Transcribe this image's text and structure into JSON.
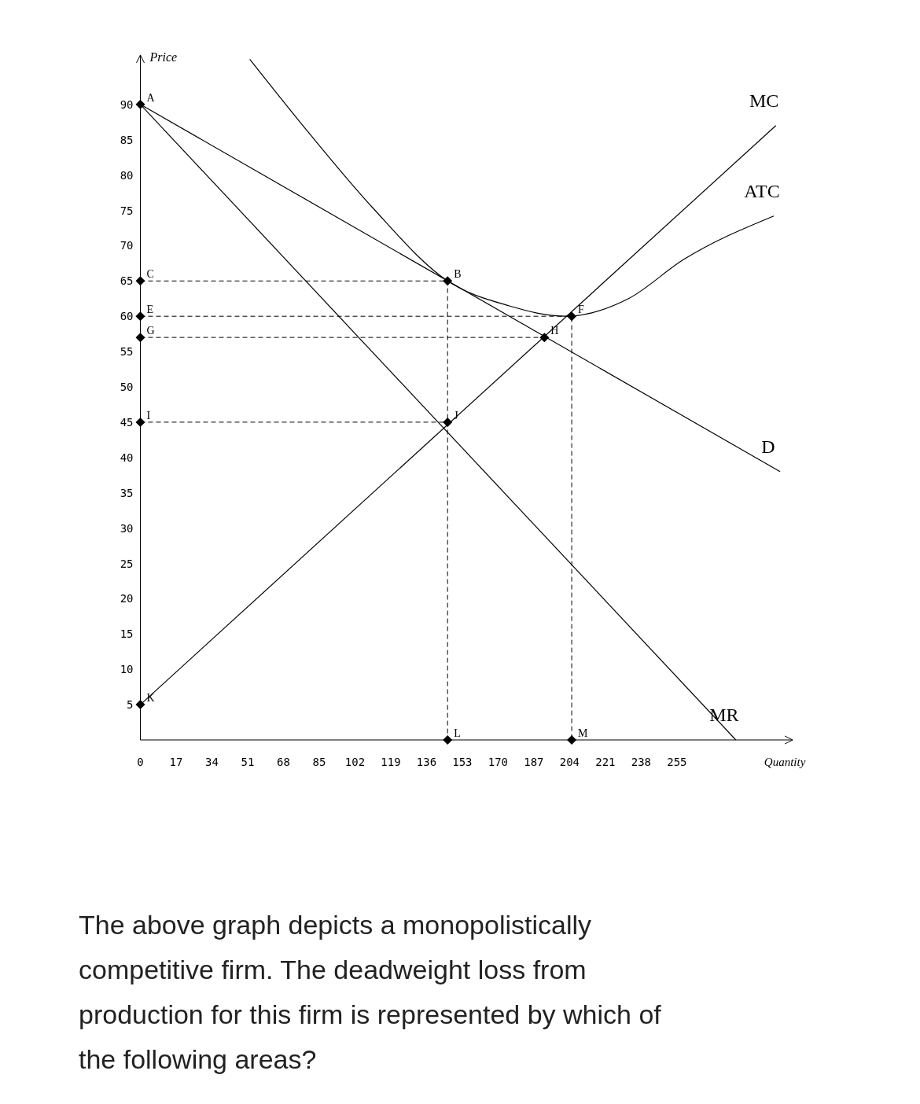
{
  "chart_data": {
    "type": "line",
    "xlabel": "Quantity",
    "ylabel": "Price",
    "xlim": [
      0,
      310
    ],
    "ylim": [
      0,
      97
    ],
    "xticks": [
      0,
      17,
      34,
      51,
      68,
      85,
      102,
      119,
      136,
      153,
      170,
      187,
      204,
      221,
      238,
      255
    ],
    "yticks": [
      5,
      10,
      15,
      20,
      25,
      30,
      35,
      40,
      45,
      50,
      55,
      60,
      65,
      70,
      75,
      80,
      85,
      90
    ],
    "grid": false,
    "legend": false,
    "series": [
      {
        "name": "MC",
        "color": "#000000",
        "x": [
          0,
          302
        ],
        "values": [
          5,
          87
        ]
      },
      {
        "name": "ATC",
        "color": "#000000",
        "x": [
          52,
          80,
          110,
          146,
          175,
          202,
          232,
          258,
          301
        ],
        "values": [
          96.4,
          86,
          75.5,
          65,
          61.5,
          60,
          62.5,
          68,
          74.2
        ]
      },
      {
        "name": "D",
        "color": "#000000",
        "x": [
          0,
          304
        ],
        "values": [
          90,
          38
        ]
      },
      {
        "name": "MR",
        "color": "#000000",
        "x": [
          0,
          283
        ],
        "values": [
          90,
          0
        ]
      },
      {
        "type": "line",
        "line_style": "dashed",
        "color": "#000000",
        "x": [
          0,
          146,
          146
        ],
        "values": [
          65,
          65,
          0
        ]
      },
      {
        "type": "line",
        "line_style": "dashed",
        "color": "#000000",
        "x": [
          0,
          205,
          205
        ],
        "values": [
          60,
          60,
          0
        ]
      },
      {
        "type": "line",
        "line_style": "dashed",
        "color": "#000000",
        "x": [
          0,
          192
        ],
        "values": [
          57,
          57
        ]
      },
      {
        "type": "line",
        "line_style": "dashed",
        "color": "#000000",
        "x": [
          0,
          146
        ],
        "values": [
          45,
          45
        ]
      },
      {
        "type": "scatter",
        "marker": "diamond",
        "color": "#000000",
        "x": [
          0,
          146,
          0,
          0,
          205,
          0,
          192,
          0,
          146,
          0,
          146,
          205
        ],
        "values": [
          90,
          65,
          65,
          60,
          60,
          57,
          57,
          45,
          45,
          5,
          0,
          0
        ]
      }
    ],
    "annotations": [
      {
        "text": "A",
        "x": 0,
        "y": 90
      },
      {
        "text": "B",
        "x": 146,
        "y": 65
      },
      {
        "text": "C",
        "x": 0,
        "y": 65
      },
      {
        "text": "E",
        "x": 0,
        "y": 60
      },
      {
        "text": "F",
        "x": 205,
        "y": 60
      },
      {
        "text": "G",
        "x": 0,
        "y": 57
      },
      {
        "text": "H",
        "x": 192,
        "y": 57
      },
      {
        "text": "I",
        "x": 0,
        "y": 45
      },
      {
        "text": "J",
        "x": 146,
        "y": 45
      },
      {
        "text": "K",
        "x": 0,
        "y": 5
      },
      {
        "text": "L",
        "x": 146,
        "y": 0
      },
      {
        "text": "M",
        "x": 205,
        "y": 0
      },
      "The above graph depicts a monopolistically competitive firm. The deadweight loss from production for this firm is represented by which of the following areas?"
    ]
  }
}
